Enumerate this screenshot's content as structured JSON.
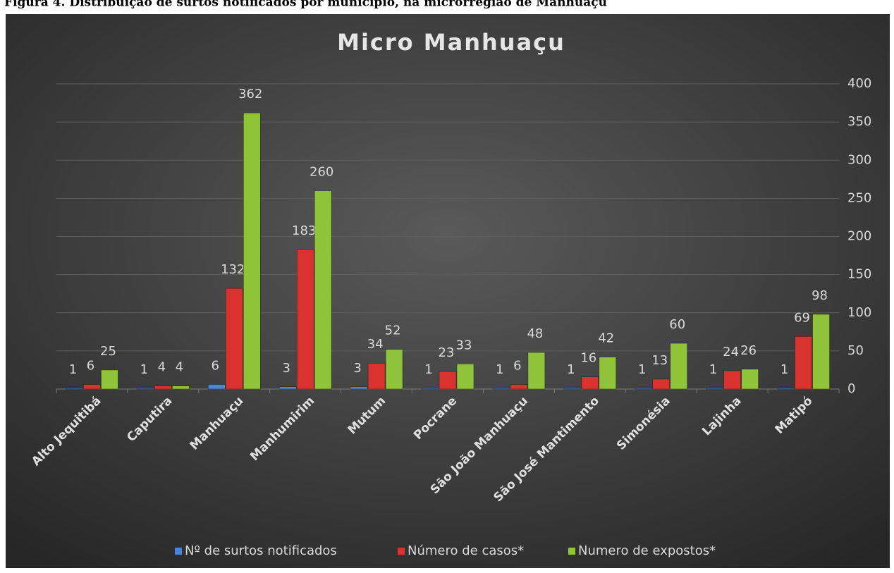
{
  "caption": "Figura 4. Distribuição de surtos notificados por município, na microrregião de Manhuaçu",
  "chart_data": {
    "type": "bar",
    "title": "Micro Manhuaçu",
    "categories": [
      "Alto Jequitibá",
      "Caputira",
      "Manhuaçu",
      "Manhumirim",
      "Mutum",
      "Pocrane",
      "São João Manhuaçu",
      "São José Mantimento",
      "Simonésia",
      "Lajinha",
      "Matipó"
    ],
    "series": [
      {
        "name": "Nº de surtos notificados",
        "color": "#4a86d6",
        "values": [
          1,
          1,
          6,
          3,
          3,
          1,
          1,
          1,
          1,
          1,
          1
        ]
      },
      {
        "name": "Número de casos*",
        "color": "#d9322f",
        "values": [
          6,
          4,
          132,
          183,
          34,
          23,
          6,
          16,
          13,
          24,
          69
        ]
      },
      {
        "name": "Numero de expostos*",
        "color": "#8fc33a",
        "values": [
          25,
          4,
          362,
          260,
          52,
          33,
          48,
          42,
          60,
          26,
          98
        ]
      }
    ],
    "ylim": [
      0,
      400
    ],
    "yticks": [
      0,
      50,
      100,
      150,
      200,
      250,
      300,
      350,
      400
    ],
    "y_axis_side": "right",
    "grid": true,
    "legend": "bottom"
  }
}
